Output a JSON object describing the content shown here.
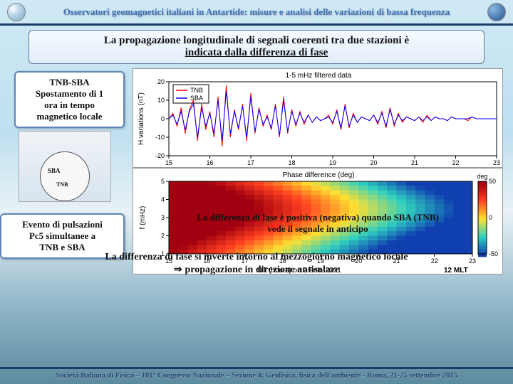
{
  "header": {
    "title": "Osservatori geomagnetici italiani in Antartide: misure e analisi delle variazioni di bassa frequenza"
  },
  "main_title": {
    "line1": "La propagazione longitudinale di segnali coerenti tra due stazioni è",
    "line2": "indicata dalla differenza di fase"
  },
  "box1": {
    "l1": "TNB-SBA",
    "l2": "Spostamento di 1",
    "l3": "ora in tempo",
    "l4": "magnetico locale"
  },
  "map": {
    "label_sba": "SBA",
    "label_tnb": "TNB"
  },
  "box2": {
    "l1": "Evento di pulsazioni",
    "l2": "Pc5 simultanee a",
    "l3": "TNB e SBA"
  },
  "top_chart": {
    "title": "1-5 mHz filtered data",
    "ylabel": "H variations (nT)",
    "ylim": [
      -20,
      20
    ],
    "ytick_step": 10,
    "xlim": [
      15,
      23
    ],
    "xtick_step": 1,
    "series": [
      {
        "name": "TNB",
        "color": "#ff0000",
        "values": [
          0,
          3,
          -4,
          6,
          -8,
          5,
          10,
          -12,
          8,
          -6,
          4,
          -10,
          12,
          -15,
          18,
          -10,
          5,
          -6,
          8,
          -12,
          14,
          -8,
          6,
          -4,
          2,
          -6,
          8,
          -10,
          12,
          -8,
          5,
          -4,
          4,
          -3,
          2,
          -2,
          1,
          -1,
          0,
          2,
          -3,
          5,
          -6,
          8,
          -5,
          3,
          -2,
          1,
          0,
          -1,
          2,
          -3,
          4,
          -5,
          6,
          -4,
          3,
          -2,
          1,
          0,
          -1,
          1,
          -2,
          2,
          -1,
          1,
          0,
          0,
          -1,
          1,
          0,
          0,
          0,
          -1,
          1,
          0,
          0,
          0,
          0,
          0,
          0
        ]
      },
      {
        "name": "SBA",
        "color": "#0000ff",
        "values": [
          0,
          2,
          -3,
          4,
          -6,
          4,
          8,
          -10,
          6,
          -4,
          3,
          -8,
          10,
          -12,
          15,
          -8,
          4,
          -5,
          7,
          -10,
          12,
          -7,
          5,
          -3,
          1,
          -5,
          7,
          -9,
          10,
          -7,
          4,
          -3,
          3,
          -2,
          2,
          -2,
          1,
          -1,
          0,
          1,
          -2,
          4,
          -5,
          7,
          -4,
          2,
          -2,
          1,
          0,
          -1,
          2,
          -2,
          3,
          -4,
          5,
          -3,
          2,
          -1,
          1,
          0,
          -1,
          1,
          -1,
          1,
          -1,
          1,
          0,
          0,
          -1,
          1,
          0,
          0,
          0,
          0,
          1,
          0,
          0,
          0,
          0,
          0,
          0
        ]
      }
    ],
    "legend": [
      "TNB",
      "SBA"
    ],
    "background_color": "#ffffff",
    "grid_color": "#000000"
  },
  "bot_chart": {
    "title": "Phase difference (deg)",
    "ylabel": "f (mHz)",
    "xlabel": "UT (hours) on 2 Feb. 2001",
    "ylim": [
      1,
      5
    ],
    "ytick_step": 1,
    "xlim": [
      15,
      23
    ],
    "xtick_step": 1,
    "clabel": "deg",
    "clim": [
      -50,
      50
    ],
    "ctick_step": 50,
    "midnight_label": "12 MLT",
    "colormap_stops": [
      "#a00010",
      "#ff4020",
      "#ffe030",
      "#30d0c0",
      "#1040b0"
    ],
    "background_color": "#ffffff"
  },
  "caption1": {
    "l1": "La differenza di fase è positiva (negativa) quando SBA (TNB)",
    "l2": "vede il segnale in anticipo"
  },
  "caption2": {
    "l1": "La differenza di fase si inverte intorno al mezzogiorno magnetico locale",
    "l2": "propagazione in direzione antisolare"
  },
  "footer": "Società Italiana di Fisica – 101° Congresso Nazionale – Sezione 4: Geofisica, fisica dell'ambiente  -  Roma, 21-25 settembre 2015"
}
